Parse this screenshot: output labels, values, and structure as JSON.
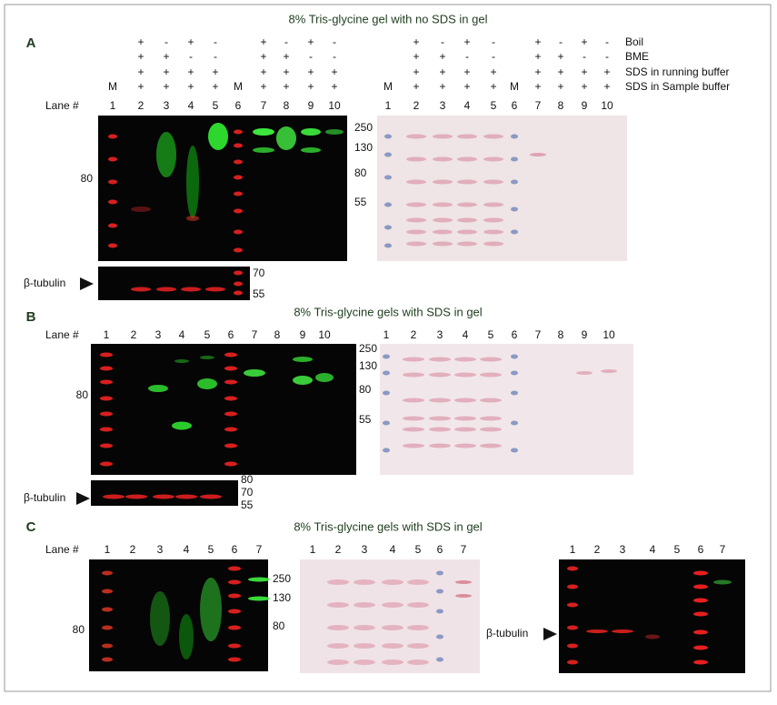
{
  "figure": {
    "panels": [
      {
        "label": "A",
        "title": "8% Tris-glycine gel with no SDS in gel",
        "conditions": [
          {
            "name": "Boil",
            "left": [
              "+",
              "-",
              "+",
              "-",
              "+",
              "-",
              "+",
              "-"
            ],
            "right": [
              "+",
              "-",
              "+",
              "-",
              "+",
              "-",
              "+",
              "-"
            ]
          },
          {
            "name": "BME",
            "left": [
              "+",
              "+",
              "-",
              "-",
              "+",
              "+",
              "-",
              "-"
            ],
            "right": [
              "+",
              "+",
              "-",
              "-",
              "+",
              "+",
              "-",
              "-"
            ]
          },
          {
            "name": "SDS in running buffer",
            "left": [
              "+",
              "+",
              "+",
              "+",
              "+",
              "+",
              "+",
              "+"
            ],
            "right": [
              "+",
              "+",
              "+",
              "+",
              "+",
              "+",
              "+",
              "+"
            ]
          },
          {
            "name": "SDS in Sample buffer",
            "left": [
              "+",
              "+",
              "+",
              "+",
              "+",
              "+",
              "+",
              "+"
            ],
            "right": [
              "+",
              "+",
              "+",
              "+",
              "+",
              "+",
              "+",
              "+"
            ]
          }
        ],
        "marker_lanes": {
          "left": [
            "M",
            "M"
          ],
          "right": [
            "M",
            "M"
          ]
        },
        "lane_header": "Lane #",
        "lanes_left": [
          1,
          2,
          3,
          4,
          5,
          6,
          7,
          8,
          9,
          10
        ],
        "lanes_right": [
          1,
          2,
          3,
          4,
          5,
          6,
          7,
          8,
          9,
          10
        ],
        "blot_mw": [
          80
        ],
        "mw": [
          250,
          130,
          80,
          55
        ],
        "tubulin_label": "β-tubulin",
        "tubulin_mw": [
          70,
          55
        ]
      },
      {
        "label": "B",
        "title": "8% Tris-glycine gels with SDS in gel",
        "lane_header": "Lane #",
        "lanes_left": [
          1,
          2,
          3,
          4,
          5,
          6,
          7,
          8,
          9,
          10
        ],
        "lanes_right": [
          1,
          2,
          3,
          4,
          5,
          6,
          7,
          8,
          9,
          10
        ],
        "blot_mw": [
          80
        ],
        "mw": [
          250,
          130,
          80,
          55
        ],
        "tubulin_label": "β-tubulin",
        "tubulin_mw": [
          80,
          70,
          55
        ]
      },
      {
        "label": "C",
        "title": "8% Tris-glycine gels with SDS in gel",
        "lane_header": "Lane #",
        "lanes_1": [
          1,
          2,
          3,
          4,
          5,
          6,
          7
        ],
        "lanes_2": [
          1,
          2,
          3,
          4,
          5,
          6,
          7
        ],
        "lanes_3": [
          1,
          2,
          3,
          4,
          5,
          6,
          7
        ],
        "blot_mw": [
          80
        ],
        "mw": [
          250,
          130,
          80
        ],
        "tubulin_label": "β-tubulin"
      }
    ]
  }
}
